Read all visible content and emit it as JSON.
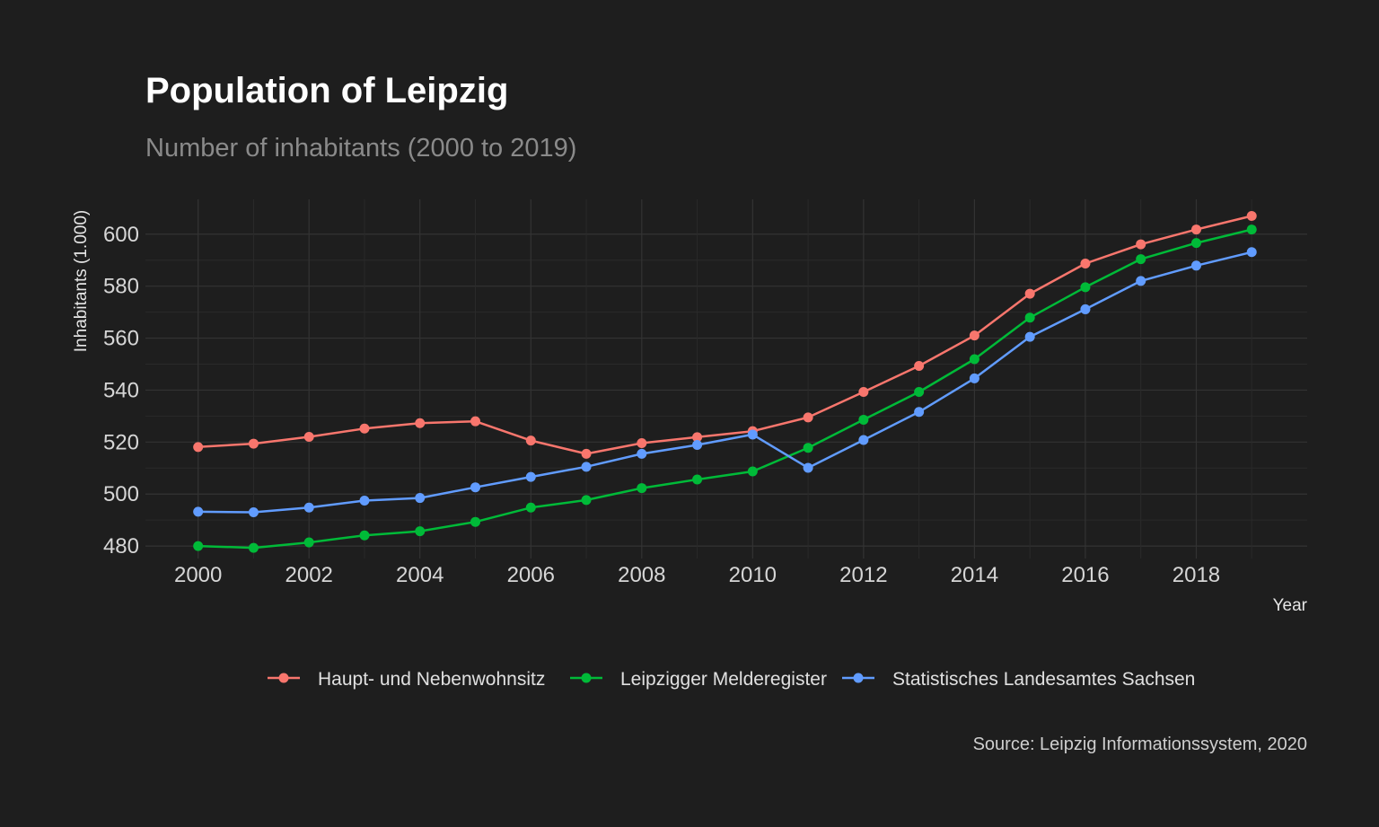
{
  "chart_data": {
    "type": "line",
    "title": "Population of Leipzig",
    "subtitle": "Number of inhabitants (2000 to 2019)",
    "xlabel": "Year",
    "ylabel": "Inhabitants (1.000)",
    "caption": "Source: Leipzig Informationssystem, 2020",
    "x": [
      2000,
      2001,
      2002,
      2003,
      2004,
      2005,
      2006,
      2007,
      2008,
      2009,
      2010,
      2011,
      2012,
      2013,
      2014,
      2015,
      2016,
      2017,
      2018,
      2019
    ],
    "xlim": [
      1999.05,
      2020.0
    ],
    "ylim": [
      475.2,
      613.4
    ],
    "xticks": [
      2000,
      2002,
      2004,
      2006,
      2008,
      2010,
      2012,
      2014,
      2016,
      2018
    ],
    "yticks": [
      480,
      500,
      520,
      540,
      560,
      580,
      600
    ],
    "grid": true,
    "legend_position": "bottom",
    "series": [
      {
        "name": "Haupt- und Nebenwohnsitz",
        "color": "#f8766d",
        "values": [
          518.1,
          519.4,
          522.0,
          525.2,
          527.3,
          528.0,
          520.6,
          515.5,
          519.6,
          521.9,
          524.2,
          529.5,
          539.3,
          549.3,
          561.0,
          577.1,
          588.7,
          596.1,
          601.8,
          607.0
        ]
      },
      {
        "name": "Leipzigger Melderegister",
        "color": "#00ba38",
        "values": [
          480.0,
          479.3,
          481.4,
          484.1,
          485.7,
          489.3,
          494.8,
          497.7,
          502.3,
          505.6,
          508.7,
          517.8,
          528.6,
          539.3,
          551.9,
          567.9,
          579.6,
          590.4,
          596.6,
          601.8
        ]
      },
      {
        "name": "Statistisches Landesamtes Sachsen",
        "color": "#619cff",
        "values": [
          493.2,
          493.0,
          494.8,
          497.5,
          498.5,
          502.6,
          506.6,
          510.5,
          515.5,
          518.9,
          522.9,
          510.1,
          520.8,
          531.6,
          544.5,
          560.5,
          571.1,
          582.0,
          587.9,
          593.1
        ]
      }
    ]
  }
}
